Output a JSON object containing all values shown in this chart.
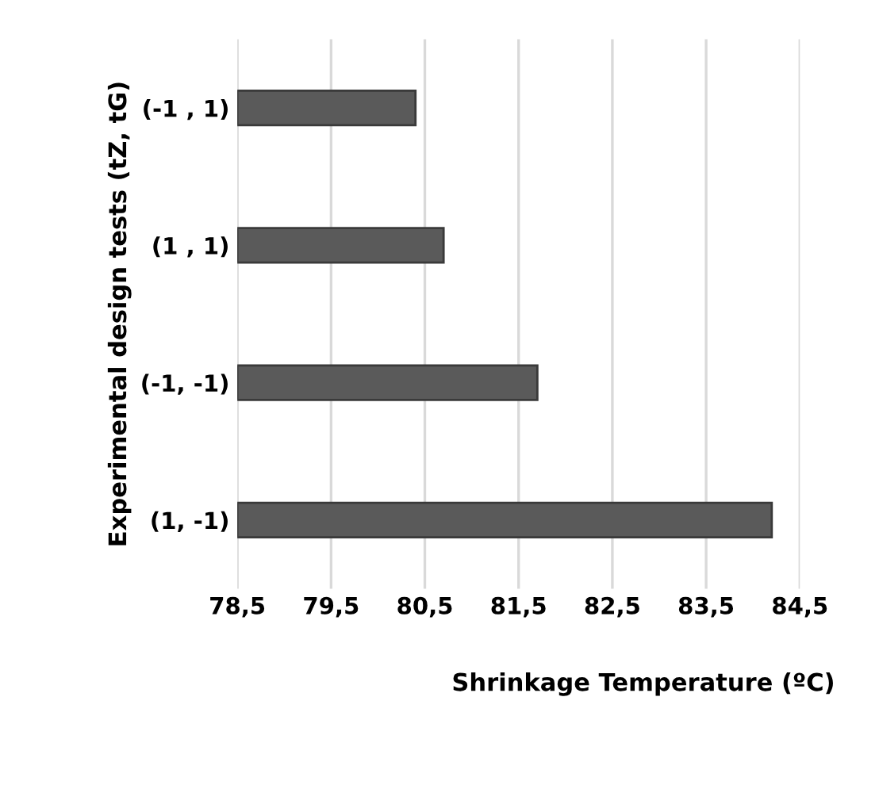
{
  "chart_data": {
    "type": "bar",
    "orientation": "horizontal",
    "xlabel": "Shrinkage Temperature (ºC)",
    "ylabel": "Experimental design tests (tZ, tG)",
    "categories": [
      "(-1 , 1)",
      "(1 , 1)",
      "(-1, -1)",
      "(1, -1)"
    ],
    "values": [
      80.4,
      80.7,
      81.7,
      84.2
    ],
    "color": "#5a5a5a",
    "xlim": [
      78.5,
      84.5
    ],
    "xticks": [
      {
        "value": 78.5,
        "label": "78,5"
      },
      {
        "value": 79.5,
        "label": "79,5"
      },
      {
        "value": 80.5,
        "label": "80,5"
      },
      {
        "value": 81.5,
        "label": "81,5"
      },
      {
        "value": 82.5,
        "label": "82,5"
      },
      {
        "value": 83.5,
        "label": "83,5"
      },
      {
        "value": 84.5,
        "label": "84,5"
      }
    ],
    "grid": "x"
  }
}
